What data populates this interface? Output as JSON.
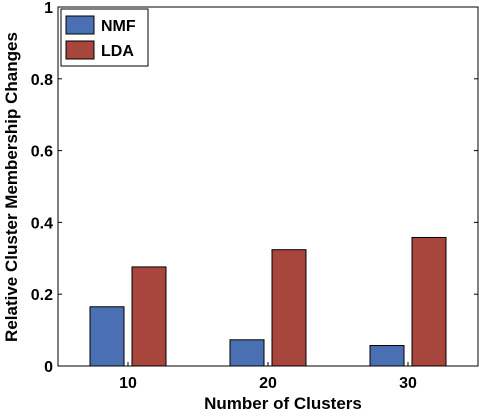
{
  "chart_data": {
    "type": "bar",
    "categories": [
      "10",
      "20",
      "30"
    ],
    "series": [
      {
        "name": "NMF",
        "values": [
          0.165,
          0.073,
          0.057
        ],
        "color": "#4a6fb3"
      },
      {
        "name": "LDA",
        "values": [
          0.276,
          0.324,
          0.358
        ],
        "color": "#a8453c"
      }
    ],
    "xlabel": "Number of Clusters",
    "ylabel": "Relative Cluster Membership Changes",
    "ylim": [
      0,
      1
    ],
    "yticks": [
      "0",
      "0.2",
      "0.4",
      "0.6",
      "0.8",
      "1"
    ],
    "legend_position": "top-left",
    "grid": false
  }
}
